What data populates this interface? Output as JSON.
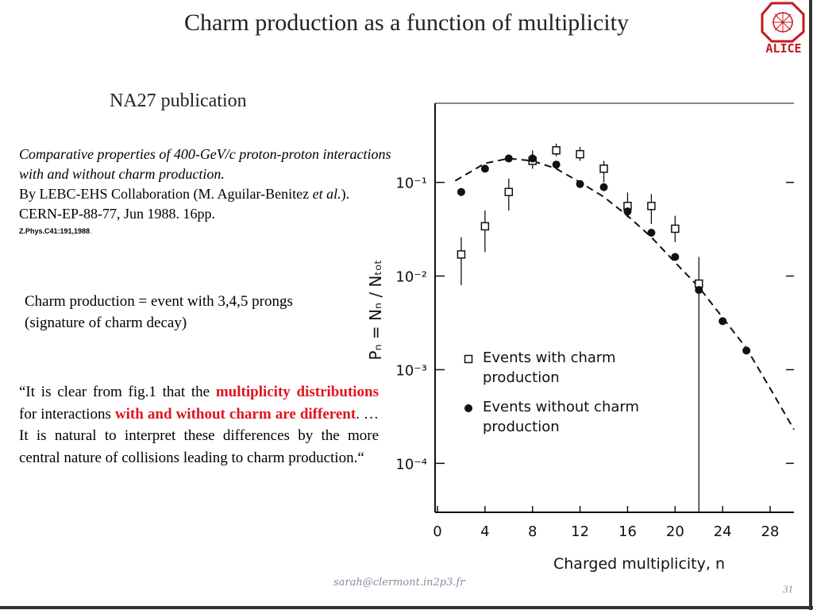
{
  "slide": {
    "title": "Charm production as a function of multiplicity",
    "subtitle": "NA27 publication",
    "logo": "ALICE",
    "citation": {
      "paper_title": "Comparative properties of 400-GeV/c proton-proton interactions with and without charm production.",
      "authors_before": "By LEBC-EHS Collaboration (M. Aguilar-Benitez ",
      "authors_etal": "et al.",
      "authors_after": ").",
      "report": "CERN-EP-88-77, Jun 1988. 16pp.",
      "journal": "Z.Phys.C41:191,1988",
      "journal_end": "."
    },
    "definition": "Charm production = event with 3,4,5 prongs (signature of charm decay)",
    "quote": [
      {
        "text": "“It is clear from fig.1 that the ",
        "emphasis": false
      },
      {
        "text": "multiplicity distributions",
        "emphasis": true
      },
      {
        "text": " for interactions ",
        "emphasis": false
      },
      {
        "text": "with and without charm are different",
        "emphasis": true
      },
      {
        "text": ". … It is natural to interpret these differences by the more central nature of collisions leading to charm production.“",
        "emphasis": false
      }
    ],
    "footer": "sarah@clermont.in2p3.fr",
    "page": "31"
  },
  "chart_data": {
    "type": "scatter",
    "x_label": "Charged multiplicity, n",
    "y_label": "Pₙ = Nₙ / Nₜₒₜ",
    "log_y": true,
    "xlim": [
      -0.2,
      30
    ],
    "ylim": [
      3e-05,
      0.7
    ],
    "xticks": [
      0,
      4,
      8,
      12,
      16,
      20,
      24,
      28
    ],
    "yticks": [
      {
        "value": 0.1,
        "label": "10⁻¹"
      },
      {
        "value": 0.01,
        "label": "10⁻²"
      },
      {
        "value": 0.001,
        "label": "10⁻³"
      },
      {
        "value": 0.0001,
        "label": "10⁻⁴"
      }
    ],
    "series": [
      {
        "name": "Events with charm production",
        "marker": "open-square",
        "color": "#111111",
        "x": [
          2,
          4,
          6,
          8,
          10,
          12,
          14,
          16,
          18,
          20,
          22
        ],
        "values": [
          0.017,
          0.034,
          0.079,
          0.17,
          0.22,
          0.2,
          0.14,
          0.056,
          0.056,
          0.032,
          0.0083
        ],
        "error_low": [
          0.008,
          0.018,
          0.05,
          0.14,
          0.19,
          0.17,
          0.1,
          0.042,
          0.036,
          0.023,
          3e-05
        ],
        "error_high": [
          0.026,
          0.05,
          0.11,
          0.22,
          0.26,
          0.24,
          0.17,
          0.078,
          0.075,
          0.044,
          0.016
        ]
      },
      {
        "name": "Events without charm production",
        "marker": "filled-circle",
        "color": "#111111",
        "x": [
          2,
          4,
          6,
          8,
          10,
          12,
          14,
          16,
          18,
          20,
          22,
          24,
          26
        ],
        "values": [
          0.079,
          0.14,
          0.18,
          0.18,
          0.155,
          0.096,
          0.089,
          0.049,
          0.029,
          0.016,
          0.0071,
          0.0033,
          0.0016
        ]
      }
    ],
    "fit": {
      "style": "dashed",
      "x": [
        1.5,
        4,
        6,
        8,
        10,
        12,
        14,
        16,
        18,
        20,
        22,
        24,
        26,
        28,
        30
      ],
      "values": [
        0.104,
        0.16,
        0.18,
        0.17,
        0.14,
        0.1,
        0.07,
        0.044,
        0.026,
        0.014,
        0.0076,
        0.0036,
        0.0017,
        0.00063,
        0.00023
      ]
    }
  }
}
